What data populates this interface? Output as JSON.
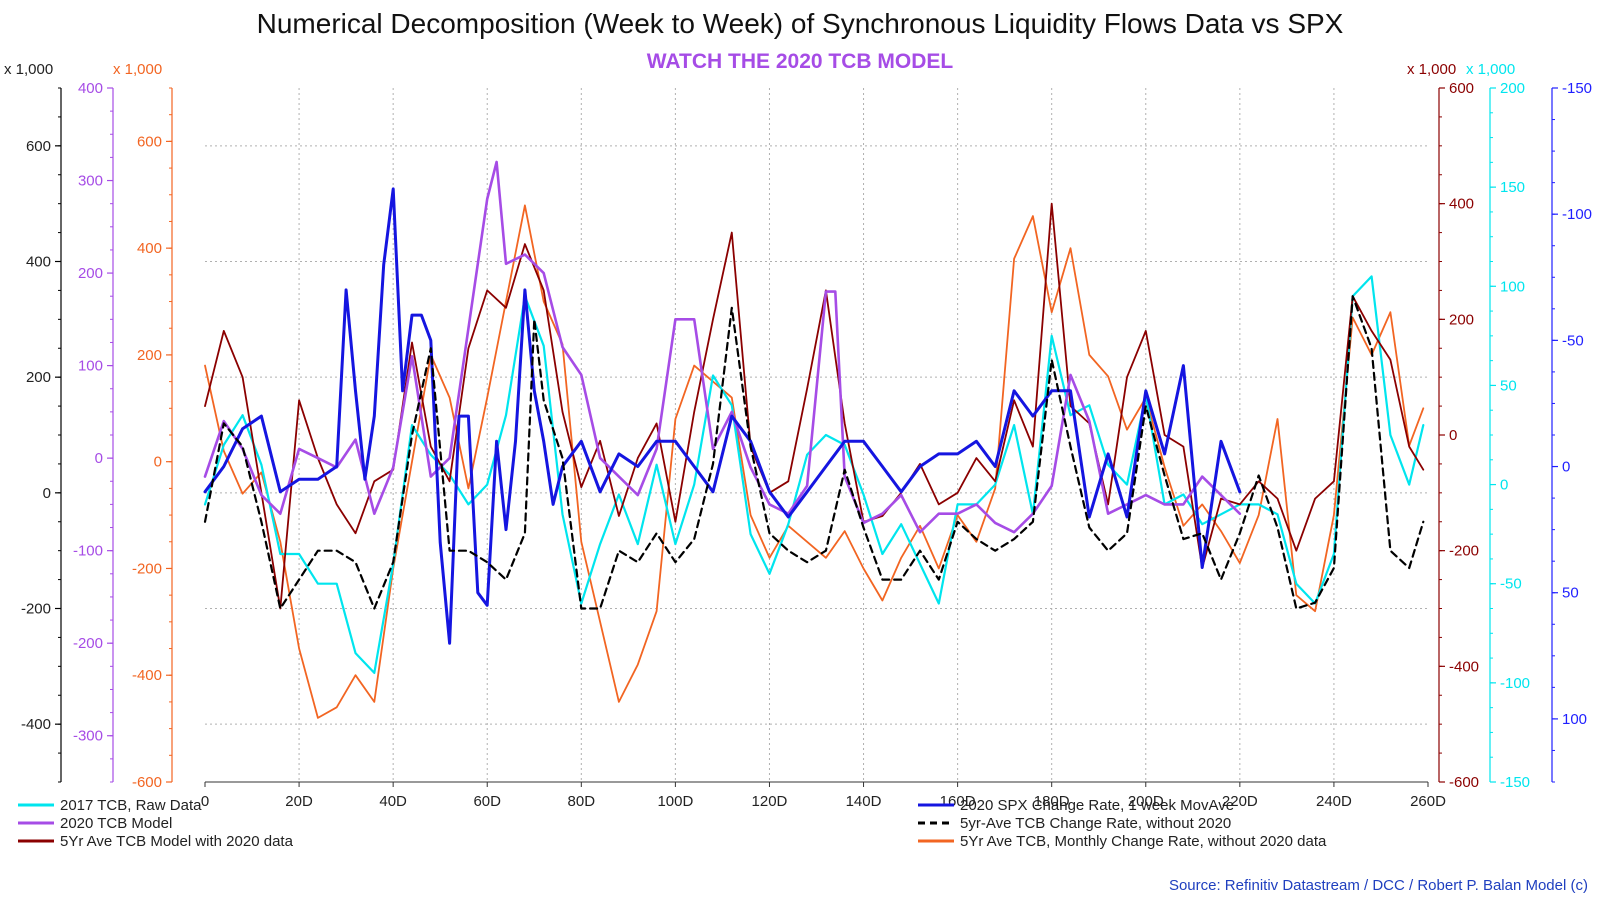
{
  "chart_data": {
    "type": "line",
    "title": "Numerical Decomposition (Week to Week) of Synchronous Liquidity Flows Data vs SPX",
    "subtitle": "WATCH THE 2020 TCB MODEL",
    "source": "Source: Refinitiv Datastream / DCC / Robert P. Balan Model (c)",
    "x_axis": {
      "min": 0,
      "max": 260,
      "step": 20,
      "tick_labels": [
        "0",
        "20D",
        "40D",
        "60D",
        "80D",
        "100D",
        "120D",
        "140D",
        "160D",
        "180D",
        "200D",
        "220D",
        "240D",
        "260D"
      ]
    },
    "axes": [
      {
        "id": "ax1",
        "side": "left",
        "unit_label": "x 1,000",
        "color": "#000000",
        "min": -500,
        "max": 700,
        "step": 200,
        "tick_labels": [
          "-400",
          "-200",
          "0",
          "200",
          "400",
          "600"
        ],
        "tick_values": [
          -400,
          -200,
          0,
          200,
          400,
          600
        ]
      },
      {
        "id": "ax2",
        "side": "left",
        "unit_label": "",
        "color": "#a64ce6",
        "min": -350,
        "max": 400,
        "step": 100,
        "tick_labels": [
          "-300",
          "-200",
          "-100",
          "0",
          "100",
          "200",
          "300",
          "400"
        ],
        "tick_values": [
          -300,
          -200,
          -100,
          0,
          100,
          200,
          300,
          400
        ]
      },
      {
        "id": "ax3",
        "side": "left",
        "unit_label": "x 1,000",
        "color": "#f26522",
        "min": -600,
        "max": 700,
        "step": 200,
        "tick_labels": [
          "-600",
          "-400",
          "-200",
          "0",
          "200",
          "400",
          "600"
        ],
        "tick_values": [
          -600,
          -400,
          -200,
          0,
          200,
          400,
          600
        ]
      },
      {
        "id": "ax4",
        "side": "right",
        "unit_label": "x 1,000",
        "color": "#8b0000",
        "min": -600,
        "max": 600,
        "step": 200,
        "tick_labels": [
          "-600",
          "-400",
          "-200",
          "0",
          "200",
          "400",
          "600"
        ],
        "tick_values": [
          -600,
          -400,
          -200,
          0,
          200,
          400,
          600
        ]
      },
      {
        "id": "ax5",
        "side": "right",
        "unit_label": "x 1,000",
        "color": "#00e5ee",
        "min": -150,
        "max": 200,
        "step": 50,
        "tick_labels": [
          "-150",
          "-100",
          "-50",
          "0",
          "50",
          "100",
          "150",
          "200"
        ],
        "tick_values": [
          -150,
          -100,
          -50,
          0,
          50,
          100,
          150,
          200
        ]
      },
      {
        "id": "ax6",
        "side": "right",
        "unit_label": "",
        "color": "#1f1fff",
        "inverted": true,
        "min": -150,
        "max": 125,
        "step": 50,
        "tick_labels": [
          "-150",
          "-100",
          "-50",
          "0",
          "50",
          "100"
        ],
        "tick_values": [
          -150,
          -100,
          -50,
          0,
          50,
          100
        ]
      }
    ],
    "series": [
      {
        "name": "5Yr Ave TCB, Monthly Change Rate, without 2020 data",
        "axis": "ax3",
        "color": "#f26522",
        "width": 1.8,
        "dash": "",
        "x": [
          0,
          4,
          8,
          12,
          16,
          20,
          24,
          28,
          32,
          36,
          40,
          44,
          48,
          52,
          56,
          60,
          64,
          68,
          72,
          76,
          80,
          84,
          88,
          92,
          96,
          100,
          104,
          108,
          112,
          116,
          120,
          124,
          128,
          132,
          136,
          140,
          144,
          148,
          152,
          156,
          160,
          164,
          168,
          172,
          176,
          180,
          184,
          188,
          192,
          196,
          200,
          204,
          208,
          212,
          216,
          220,
          224,
          228,
          232,
          236,
          240,
          244,
          248,
          252,
          256,
          259
        ],
        "values": [
          180,
          20,
          -60,
          -20,
          -150,
          -350,
          -480,
          -460,
          -400,
          -450,
          -200,
          0,
          200,
          120,
          -50,
          120,
          300,
          480,
          300,
          220,
          -150,
          -300,
          -450,
          -380,
          -280,
          80,
          180,
          150,
          120,
          -100,
          -180,
          -120,
          -150,
          -180,
          -130,
          -200,
          -260,
          -180,
          -120,
          -200,
          -100,
          -150,
          -50,
          380,
          460,
          280,
          400,
          200,
          160,
          60,
          120,
          -10,
          -120,
          -80,
          -130,
          -190,
          -100,
          80,
          -250,
          -280,
          -100,
          270,
          200,
          280,
          30,
          100
        ]
      },
      {
        "name": "2017 TCB, Raw Data",
        "axis": "ax5",
        "color": "#00e5ee",
        "width": 2.2,
        "dash": "",
        "x": [
          0,
          4,
          8,
          12,
          16,
          20,
          24,
          28,
          32,
          36,
          40,
          44,
          48,
          52,
          56,
          60,
          64,
          68,
          72,
          76,
          80,
          84,
          88,
          92,
          96,
          100,
          104,
          108,
          112,
          116,
          120,
          124,
          128,
          132,
          136,
          140,
          144,
          148,
          152,
          156,
          160,
          164,
          168,
          172,
          176,
          180,
          184,
          188,
          192,
          196,
          200,
          204,
          208,
          212,
          216,
          220,
          224,
          228,
          232,
          236,
          240,
          244,
          248,
          252,
          256,
          259
        ],
        "values": [
          -10,
          20,
          35,
          10,
          -35,
          -35,
          -50,
          -50,
          -85,
          -95,
          -40,
          30,
          15,
          5,
          -10,
          0,
          35,
          95,
          70,
          -15,
          -60,
          -30,
          -5,
          -30,
          10,
          -30,
          0,
          55,
          40,
          -25,
          -45,
          -20,
          15,
          25,
          20,
          -5,
          -35,
          -20,
          -40,
          -60,
          -10,
          -10,
          0,
          30,
          -15,
          75,
          35,
          40,
          10,
          0,
          45,
          -10,
          -5,
          -20,
          -15,
          -10,
          -10,
          -15,
          -50,
          -60,
          -35,
          95,
          105,
          25,
          0,
          30
        ]
      },
      {
        "name": "5Yr Ave TCB Model with 2020 data",
        "axis": "ax4",
        "color": "#8b0000",
        "width": 1.8,
        "dash": "",
        "x": [
          0,
          4,
          8,
          12,
          16,
          20,
          24,
          28,
          32,
          36,
          40,
          44,
          48,
          52,
          56,
          60,
          64,
          68,
          72,
          76,
          80,
          84,
          88,
          92,
          96,
          100,
          104,
          108,
          112,
          116,
          120,
          124,
          128,
          132,
          136,
          140,
          144,
          148,
          152,
          156,
          160,
          164,
          168,
          172,
          176,
          180,
          184,
          188,
          192,
          196,
          200,
          204,
          208,
          212,
          216,
          220,
          224,
          228,
          232,
          236,
          240,
          244,
          248,
          252,
          256,
          259
        ],
        "values": [
          50,
          180,
          100,
          -100,
          -300,
          60,
          -40,
          -120,
          -170,
          -80,
          -60,
          160,
          -20,
          -80,
          150,
          250,
          220,
          330,
          250,
          40,
          -90,
          -10,
          -140,
          -40,
          20,
          -150,
          40,
          200,
          350,
          -20,
          -100,
          -80,
          80,
          250,
          20,
          -150,
          -140,
          -100,
          -50,
          -120,
          -100,
          -40,
          -80,
          60,
          -20,
          400,
          50,
          20,
          -120,
          100,
          180,
          0,
          -20,
          -230,
          -110,
          -120,
          -80,
          -110,
          -200,
          -110,
          -80,
          240,
          180,
          130,
          -20,
          -60
        ]
      },
      {
        "name": "2020 TCB Model",
        "axis": "ax2",
        "color": "#a64ce6",
        "width": 2.6,
        "dash": "",
        "x": [
          0,
          4,
          8,
          12,
          16,
          20,
          24,
          28,
          32,
          36,
          40,
          44,
          48,
          52,
          56,
          60,
          62,
          64,
          68,
          72,
          76,
          80,
          84,
          88,
          92,
          96,
          100,
          104,
          108,
          112,
          116,
          120,
          124,
          128,
          132,
          134,
          136,
          140,
          144,
          148,
          152,
          156,
          160,
          164,
          168,
          172,
          176,
          180,
          184,
          188,
          192,
          196,
          200,
          204,
          208,
          212,
          216,
          220
        ],
        "values": [
          -20,
          40,
          10,
          -40,
          -60,
          10,
          0,
          -10,
          20,
          -60,
          -10,
          110,
          -20,
          0,
          140,
          280,
          320,
          210,
          220,
          200,
          120,
          90,
          0,
          -20,
          -40,
          10,
          150,
          150,
          10,
          50,
          -10,
          -50,
          -60,
          -30,
          180,
          180,
          -20,
          -70,
          -60,
          -40,
          -80,
          -60,
          -60,
          -50,
          -70,
          -80,
          -60,
          -30,
          90,
          40,
          -60,
          -50,
          -40,
          -50,
          -50,
          -20,
          -40,
          -60
        ]
      },
      {
        "name": "2020 SPX Change Rate, 1 week MovAve",
        "axis": "ax6",
        "color": "#1515e0",
        "width": 3.0,
        "dash": "",
        "x": [
          0,
          4,
          8,
          12,
          16,
          20,
          24,
          28,
          30,
          32,
          34,
          36,
          38,
          40,
          42,
          44,
          46,
          48,
          50,
          52,
          54,
          56,
          58,
          60,
          62,
          64,
          66,
          68,
          70,
          72,
          74,
          76,
          80,
          84,
          88,
          92,
          96,
          100,
          104,
          108,
          112,
          116,
          120,
          124,
          128,
          132,
          136,
          140,
          144,
          148,
          152,
          156,
          160,
          164,
          168,
          172,
          176,
          180,
          184,
          188,
          192,
          196,
          200,
          204,
          208,
          212,
          216,
          220
        ],
        "values": [
          10,
          0,
          -15,
          -20,
          10,
          5,
          5,
          0,
          -70,
          -30,
          5,
          -20,
          -80,
          -110,
          -30,
          -60,
          -60,
          -50,
          30,
          70,
          -20,
          -20,
          50,
          55,
          -10,
          25,
          -10,
          -70,
          -30,
          -10,
          15,
          0,
          -10,
          10,
          -5,
          0,
          -10,
          -10,
          0,
          10,
          -20,
          -10,
          10,
          20,
          10,
          0,
          -10,
          -10,
          0,
          10,
          0,
          -5,
          -5,
          -10,
          0,
          -30,
          -20,
          -30,
          -30,
          20,
          -5,
          20,
          -30,
          -5,
          -40,
          40,
          -10,
          10
        ]
      },
      {
        "name": "5yr-Ave TCB Change Rate, without 2020",
        "axis": "ax1",
        "color": "#000000",
        "width": 2.2,
        "dash": "7,5",
        "x": [
          0,
          4,
          8,
          12,
          16,
          20,
          24,
          28,
          32,
          36,
          40,
          44,
          48,
          52,
          56,
          60,
          64,
          68,
          70,
          72,
          76,
          80,
          84,
          88,
          92,
          96,
          100,
          104,
          108,
          112,
          116,
          120,
          124,
          128,
          132,
          136,
          140,
          144,
          148,
          152,
          156,
          160,
          164,
          168,
          172,
          176,
          180,
          184,
          188,
          192,
          196,
          200,
          204,
          208,
          212,
          216,
          220,
          224,
          228,
          232,
          236,
          240,
          244,
          248,
          252,
          256,
          259
        ],
        "values": [
          -50,
          120,
          80,
          -50,
          -200,
          -150,
          -100,
          -100,
          -120,
          -200,
          -120,
          100,
          250,
          -100,
          -100,
          -120,
          -150,
          -70,
          300,
          160,
          60,
          -200,
          -200,
          -100,
          -120,
          -70,
          -120,
          -80,
          50,
          320,
          80,
          -70,
          -100,
          -120,
          -100,
          40,
          -60,
          -150,
          -150,
          -100,
          -150,
          -50,
          -80,
          -100,
          -80,
          -50,
          230,
          80,
          -60,
          -100,
          -70,
          150,
          30,
          -80,
          -70,
          -150,
          -70,
          30,
          -60,
          -200,
          -190,
          -130,
          340,
          250,
          -100,
          -130,
          -50
        ]
      }
    ],
    "legend": [
      {
        "label": "2017 TCB, Raw Data",
        "color": "#00e5ee",
        "dash": ""
      },
      {
        "label": "2020 TCB Model",
        "color": "#a64ce6",
        "dash": ""
      },
      {
        "label": "5Yr Ave TCB Model with 2020 data",
        "color": "#8b0000",
        "dash": ""
      },
      {
        "label": "2020 SPX Change Rate, 1 week MovAve",
        "color": "#1515e0",
        "dash": ""
      },
      {
        "label": "5yr-Ave TCB Change Rate, without 2020",
        "color": "#000000",
        "dash": "7,5"
      },
      {
        "label": "5Yr Ave TCB, Monthly Change Rate, without 2020 data",
        "color": "#f26522",
        "dash": ""
      }
    ]
  }
}
